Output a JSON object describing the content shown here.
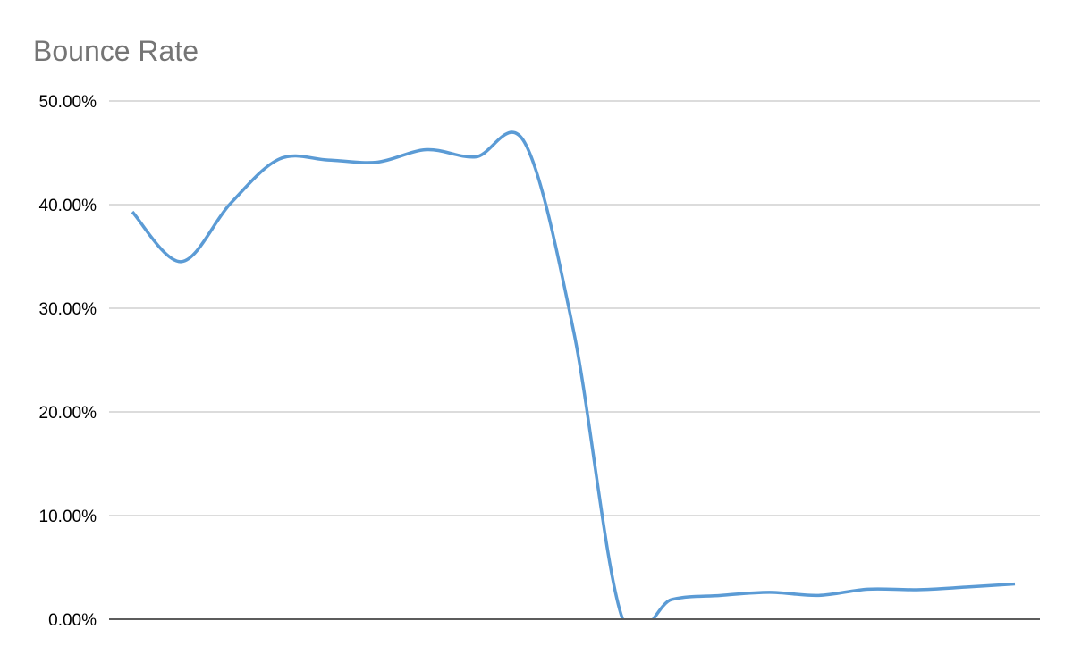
{
  "chart_data": {
    "type": "line",
    "title": "Bounce Rate",
    "xlabel": "",
    "ylabel": "",
    "ylim": [
      0,
      50
    ],
    "y_ticks": [
      "0.00%",
      "10.00%",
      "20.00%",
      "30.00%",
      "40.00%",
      "50.00%"
    ],
    "y_tick_values": [
      0,
      10,
      20,
      30,
      40,
      50
    ],
    "grid": true,
    "smoothed": true,
    "legend": "none",
    "line_color": "#5B9BD5",
    "series": [
      {
        "values": [
          39.3,
          34.5,
          40.1,
          44.4,
          44.3,
          44.1,
          45.3,
          44.6,
          46.0,
          27.8,
          0.0,
          1.9,
          2.3,
          2.6,
          2.3,
          2.9,
          2.85,
          3.1,
          3.4
        ]
      }
    ]
  }
}
